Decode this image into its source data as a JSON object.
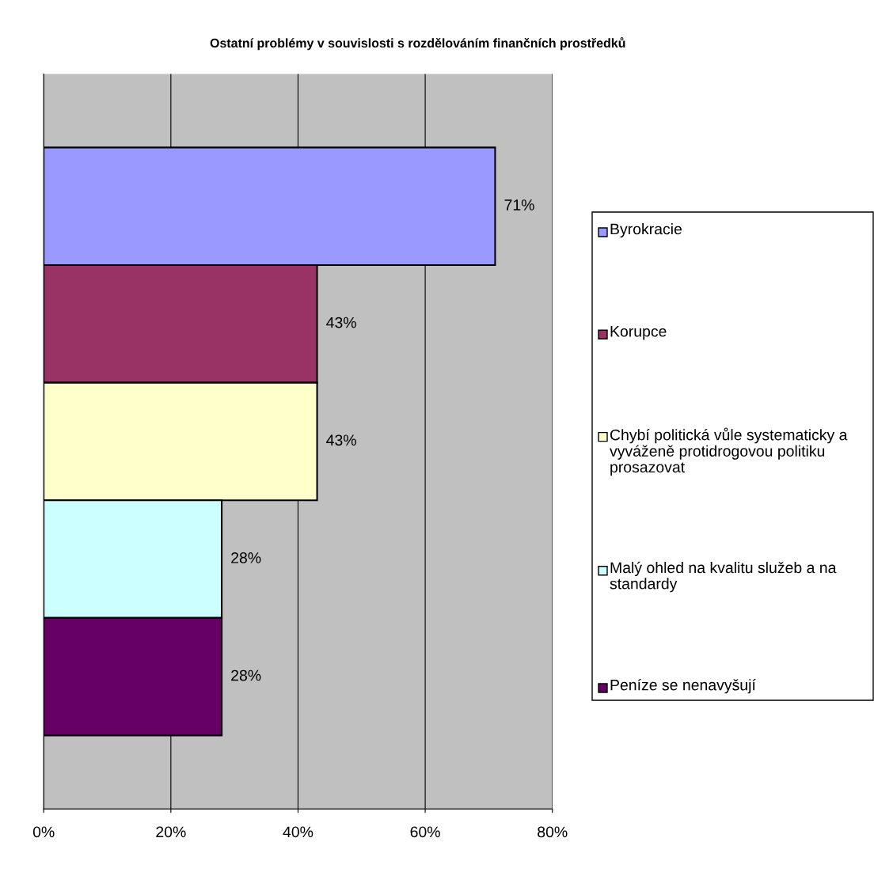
{
  "chart_data": {
    "type": "bar",
    "orientation": "horizontal",
    "title": "Ostatní problémy v souvislosti s rozdělováním finančních prostředků",
    "categories": [
      null
    ],
    "series": [
      {
        "name": "Byrokracie",
        "color": "#9999ff",
        "values": [
          71
        ],
        "value_labels": [
          "71%"
        ]
      },
      {
        "name": "Korupce",
        "color": "#993366",
        "values": [
          43
        ],
        "value_labels": [
          "43%"
        ]
      },
      {
        "name": "Chybí politická vůle systematicky a vyváženě protidrogovou politiku prosazovat",
        "color": "#ffffcc",
        "values": [
          43
        ],
        "value_labels": [
          "43%"
        ]
      },
      {
        "name": "Malý ohled na kvalitu služeb a na standardy",
        "color": "#ccffff",
        "values": [
          28
        ],
        "value_labels": [
          "28%"
        ]
      },
      {
        "name": "Peníze se nenavyšují",
        "color": "#660066",
        "values": [
          28
        ],
        "value_labels": [
          "28%"
        ]
      }
    ],
    "xlim": [
      0,
      80
    ],
    "xticks": [
      {
        "value": 0,
        "label": "0%"
      },
      {
        "value": 20,
        "label": "20%"
      },
      {
        "value": 40,
        "label": "40%"
      },
      {
        "value": 60,
        "label": "60%"
      },
      {
        "value": 80,
        "label": "80%"
      }
    ],
    "grid": "x",
    "legend": "right"
  }
}
